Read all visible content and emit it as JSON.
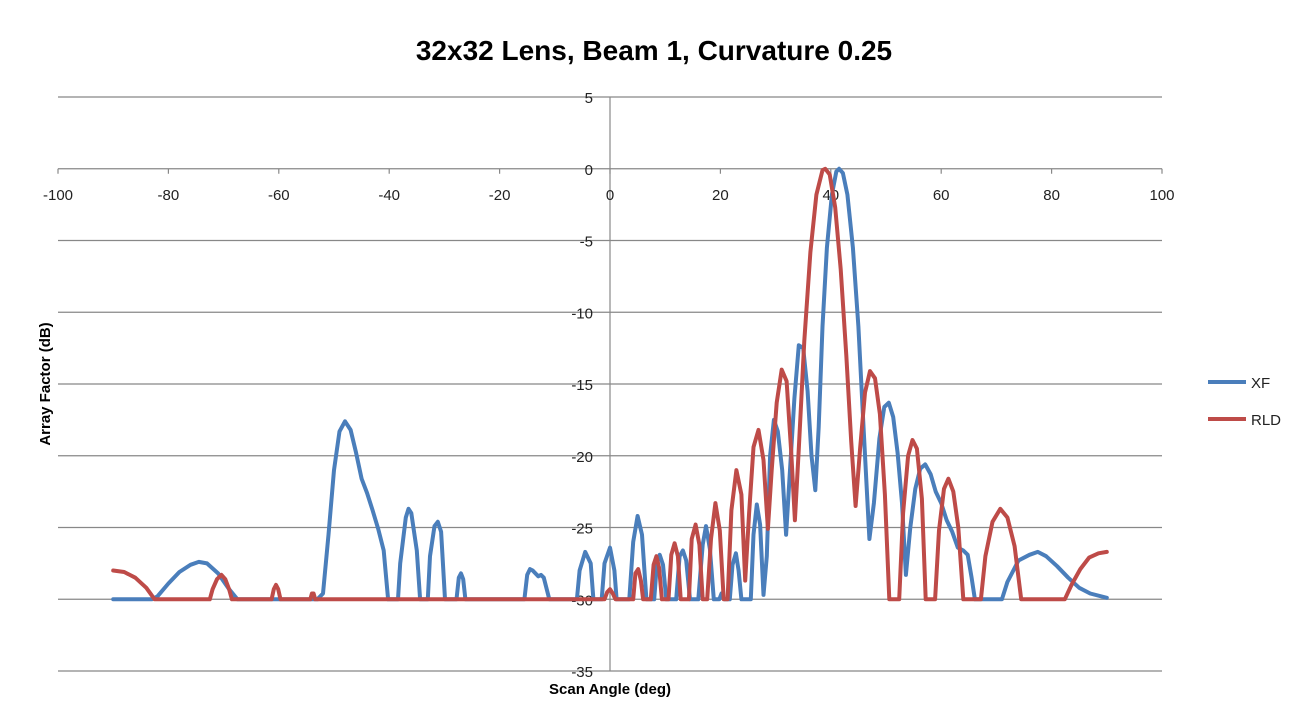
{
  "chart_data": {
    "type": "line",
    "title": "32x32 Lens, Beam 1, Curvature 0.25",
    "xlabel": "Scan Angle (deg)",
    "ylabel": "Array Factor (dB)",
    "xlim": [
      -100,
      100
    ],
    "ylim": [
      -35,
      5
    ],
    "xticks": [
      "-100",
      "-80",
      "-60",
      "-40",
      "-20",
      "0",
      "20",
      "40",
      "60",
      "80",
      "100"
    ],
    "yticks": [
      "5",
      "0",
      "-5",
      "-10",
      "-15",
      "-20",
      "-25",
      "-30",
      "-35"
    ],
    "grid": "horizontal",
    "legend": "right",
    "series": [
      {
        "name": "XF",
        "color": "#4a7ebb",
        "points": [
          [
            -90,
            -30
          ],
          [
            -83,
            -30
          ],
          [
            -82,
            -29.8
          ],
          [
            -80,
            -28.9
          ],
          [
            -78,
            -28.1
          ],
          [
            -76,
            -27.6
          ],
          [
            -74.5,
            -27.4
          ],
          [
            -73,
            -27.5
          ],
          [
            -71,
            -28.2
          ],
          [
            -69,
            -29.3
          ],
          [
            -67.5,
            -30
          ],
          [
            -53,
            -30
          ],
          [
            -52,
            -29.6
          ],
          [
            -51,
            -25.5
          ],
          [
            -50,
            -21
          ],
          [
            -49,
            -18.3
          ],
          [
            -48,
            -17.6
          ],
          [
            -47,
            -18.2
          ],
          [
            -46,
            -19.8
          ],
          [
            -45,
            -21.6
          ],
          [
            -44,
            -22.6
          ],
          [
            -43,
            -23.8
          ],
          [
            -42,
            -25.1
          ],
          [
            -41,
            -26.6
          ],
          [
            -40.2,
            -30
          ],
          [
            -38.4,
            -30
          ],
          [
            -38,
            -27.5
          ],
          [
            -37,
            -24.3
          ],
          [
            -36.5,
            -23.7
          ],
          [
            -36,
            -24
          ],
          [
            -35,
            -26.6
          ],
          [
            -34.4,
            -30
          ],
          [
            -33,
            -30
          ],
          [
            -32.6,
            -27
          ],
          [
            -31.8,
            -24.9
          ],
          [
            -31.2,
            -24.6
          ],
          [
            -30.6,
            -25.3
          ],
          [
            -29.9,
            -30
          ],
          [
            -27.8,
            -30
          ],
          [
            -27.4,
            -28.5
          ],
          [
            -27,
            -28.2
          ],
          [
            -26.6,
            -28.6
          ],
          [
            -26.2,
            -30
          ],
          [
            -15.5,
            -30
          ],
          [
            -15,
            -28.3
          ],
          [
            -14.5,
            -27.9
          ],
          [
            -14,
            -28
          ],
          [
            -13,
            -28.4
          ],
          [
            -12.5,
            -28.3
          ],
          [
            -12,
            -28.5
          ],
          [
            -11,
            -30
          ],
          [
            -6,
            -30
          ],
          [
            -5.5,
            -28
          ],
          [
            -4.5,
            -26.7
          ],
          [
            -3.5,
            -27.5
          ],
          [
            -3,
            -30
          ],
          [
            -1.5,
            -30
          ],
          [
            -1,
            -27.5
          ],
          [
            0,
            -26.4
          ],
          [
            0.8,
            -28
          ],
          [
            1.2,
            -30
          ],
          [
            3.5,
            -30
          ],
          [
            4.2,
            -26
          ],
          [
            5,
            -24.2
          ],
          [
            5.8,
            -25.5
          ],
          [
            6.6,
            -30
          ],
          [
            8,
            -30
          ],
          [
            8.5,
            -27.5
          ],
          [
            9,
            -26.9
          ],
          [
            9.6,
            -27.6
          ],
          [
            10.2,
            -30
          ],
          [
            12,
            -30
          ],
          [
            12.6,
            -27
          ],
          [
            13.2,
            -26.6
          ],
          [
            13.8,
            -27.3
          ],
          [
            14.5,
            -30
          ],
          [
            16,
            -30
          ],
          [
            16.8,
            -26.2
          ],
          [
            17.4,
            -24.9
          ],
          [
            18.1,
            -26.5
          ],
          [
            18.8,
            -30
          ],
          [
            19.8,
            -30
          ],
          [
            20.2,
            -29.6
          ],
          [
            20.7,
            -30
          ],
          [
            21.7,
            -30
          ],
          [
            22.2,
            -27.6
          ],
          [
            22.8,
            -26.8
          ],
          [
            23.3,
            -28
          ],
          [
            23.8,
            -30
          ],
          [
            25.5,
            -30
          ],
          [
            26,
            -25.5
          ],
          [
            26.6,
            -23.4
          ],
          [
            27.2,
            -24.8
          ],
          [
            27.8,
            -29.7
          ],
          [
            28.4,
            -27
          ],
          [
            29,
            -20
          ],
          [
            29.7,
            -17.5
          ],
          [
            30.4,
            -18.3
          ],
          [
            31.2,
            -21
          ],
          [
            31.9,
            -25.5
          ],
          [
            32.6,
            -21
          ],
          [
            33.4,
            -16
          ],
          [
            34.2,
            -12.3
          ],
          [
            35,
            -12.5
          ],
          [
            35.8,
            -15.5
          ],
          [
            36.5,
            -20
          ],
          [
            37.2,
            -22.4
          ],
          [
            37.8,
            -18
          ],
          [
            38.5,
            -11
          ],
          [
            39.3,
            -5.5
          ],
          [
            40.2,
            -1.8
          ],
          [
            41,
            -0.2
          ],
          [
            41.5,
            0
          ],
          [
            42.2,
            -0.3
          ],
          [
            43,
            -1.8
          ],
          [
            44,
            -5.5
          ],
          [
            45,
            -11
          ],
          [
            46,
            -18.5
          ],
          [
            47,
            -25.8
          ],
          [
            47.8,
            -23.3
          ],
          [
            48.8,
            -18.8
          ],
          [
            49.7,
            -16.6
          ],
          [
            50.5,
            -16.3
          ],
          [
            51.3,
            -17.3
          ],
          [
            52.1,
            -19.8
          ],
          [
            52.9,
            -23.3
          ],
          [
            53.6,
            -28.3
          ],
          [
            54.4,
            -25
          ],
          [
            55.3,
            -22.3
          ],
          [
            56.2,
            -20.9
          ],
          [
            57.1,
            -20.6
          ],
          [
            58.1,
            -21.3
          ],
          [
            59,
            -22.5
          ],
          [
            60,
            -23.3
          ],
          [
            61,
            -24.5
          ],
          [
            62,
            -25.3
          ],
          [
            63,
            -26.4
          ],
          [
            64,
            -26.6
          ],
          [
            64.8,
            -26.9
          ],
          [
            65.5,
            -28.5
          ],
          [
            66.1,
            -30
          ],
          [
            71,
            -30
          ],
          [
            72,
            -28.8
          ],
          [
            74,
            -27.3
          ],
          [
            76,
            -26.9
          ],
          [
            77.5,
            -26.7
          ],
          [
            79,
            -27
          ],
          [
            81,
            -27.7
          ],
          [
            83,
            -28.5
          ],
          [
            85,
            -29.2
          ],
          [
            87,
            -29.6
          ],
          [
            90,
            -29.9
          ]
        ]
      },
      {
        "name": "RLD",
        "color": "#be4b48",
        "points": [
          [
            -90,
            -28
          ],
          [
            -88,
            -28.1
          ],
          [
            -86,
            -28.5
          ],
          [
            -84,
            -29.2
          ],
          [
            -82.5,
            -30
          ],
          [
            -72.5,
            -30
          ],
          [
            -72,
            -29.3
          ],
          [
            -71.2,
            -28.6
          ],
          [
            -70.4,
            -28.3
          ],
          [
            -69.7,
            -28.6
          ],
          [
            -69,
            -29.3
          ],
          [
            -68.5,
            -30
          ],
          [
            -61.3,
            -30
          ],
          [
            -60.9,
            -29.3
          ],
          [
            -60.5,
            -29
          ],
          [
            -60.1,
            -29.3
          ],
          [
            -59.7,
            -30
          ],
          [
            -54.3,
            -30
          ],
          [
            -54,
            -29.6
          ],
          [
            -53.7,
            -29.6
          ],
          [
            -53.4,
            -30
          ],
          [
            -1,
            -30
          ],
          [
            -0.5,
            -29.5
          ],
          [
            0,
            -29.3
          ],
          [
            0.5,
            -29.6
          ],
          [
            1,
            -30
          ],
          [
            4.2,
            -30
          ],
          [
            4.6,
            -28.2
          ],
          [
            5.1,
            -27.9
          ],
          [
            5.6,
            -28.7
          ],
          [
            6,
            -30
          ],
          [
            7.4,
            -30
          ],
          [
            7.9,
            -27.6
          ],
          [
            8.4,
            -27
          ],
          [
            8.9,
            -27.8
          ],
          [
            9.4,
            -30
          ],
          [
            10.6,
            -30
          ],
          [
            11.1,
            -26.9
          ],
          [
            11.7,
            -26.1
          ],
          [
            12.3,
            -27
          ],
          [
            12.8,
            -30
          ],
          [
            14.3,
            -30
          ],
          [
            14.8,
            -25.8
          ],
          [
            15.5,
            -24.8
          ],
          [
            16.2,
            -26.2
          ],
          [
            16.8,
            -30
          ],
          [
            17.6,
            -30
          ],
          [
            18.3,
            -25.8
          ],
          [
            19.1,
            -23.3
          ],
          [
            19.9,
            -25.2
          ],
          [
            20.6,
            -30
          ],
          [
            21.3,
            -30
          ],
          [
            22,
            -23.8
          ],
          [
            22.9,
            -21
          ],
          [
            23.8,
            -22.7
          ],
          [
            24.5,
            -28.7
          ],
          [
            25.2,
            -24
          ],
          [
            26,
            -19.4
          ],
          [
            26.9,
            -18.2
          ],
          [
            27.8,
            -20.3
          ],
          [
            28.6,
            -25.1
          ],
          [
            29.3,
            -21
          ],
          [
            30.2,
            -16.3
          ],
          [
            31.1,
            -14
          ],
          [
            32,
            -14.8
          ],
          [
            32.8,
            -19.6
          ],
          [
            33.5,
            -24.5
          ],
          [
            34.2,
            -19.5
          ],
          [
            35.2,
            -12
          ],
          [
            36.3,
            -5.8
          ],
          [
            37.4,
            -1.8
          ],
          [
            38.5,
            -0.1
          ],
          [
            39,
            0
          ],
          [
            39.8,
            -0.4
          ],
          [
            40.8,
            -2.7
          ],
          [
            41.8,
            -7
          ],
          [
            42.8,
            -13
          ],
          [
            43.7,
            -19
          ],
          [
            44.5,
            -23.5
          ],
          [
            45.3,
            -19.5
          ],
          [
            46.2,
            -15.6
          ],
          [
            47.1,
            -14.1
          ],
          [
            48,
            -14.6
          ],
          [
            48.9,
            -17.1
          ],
          [
            49.8,
            -22.7
          ],
          [
            50.6,
            -30
          ],
          [
            52.4,
            -30
          ],
          [
            53.1,
            -24
          ],
          [
            54,
            -20
          ],
          [
            54.8,
            -18.9
          ],
          [
            55.6,
            -19.5
          ],
          [
            56.5,
            -23
          ],
          [
            57.2,
            -30
          ],
          [
            58.9,
            -30
          ],
          [
            59.6,
            -25.2
          ],
          [
            60.5,
            -22.3
          ],
          [
            61.3,
            -21.6
          ],
          [
            62.2,
            -22.5
          ],
          [
            63.1,
            -25
          ],
          [
            64,
            -30
          ],
          [
            67.2,
            -30
          ],
          [
            68,
            -27
          ],
          [
            69.3,
            -24.6
          ],
          [
            70.7,
            -23.7
          ],
          [
            72,
            -24.3
          ],
          [
            73.3,
            -26.3
          ],
          [
            74.5,
            -30
          ],
          [
            82.4,
            -30
          ],
          [
            83.6,
            -29
          ],
          [
            85.2,
            -27.9
          ],
          [
            86.8,
            -27.1
          ],
          [
            88.5,
            -26.8
          ],
          [
            90,
            -26.7
          ]
        ]
      }
    ]
  }
}
